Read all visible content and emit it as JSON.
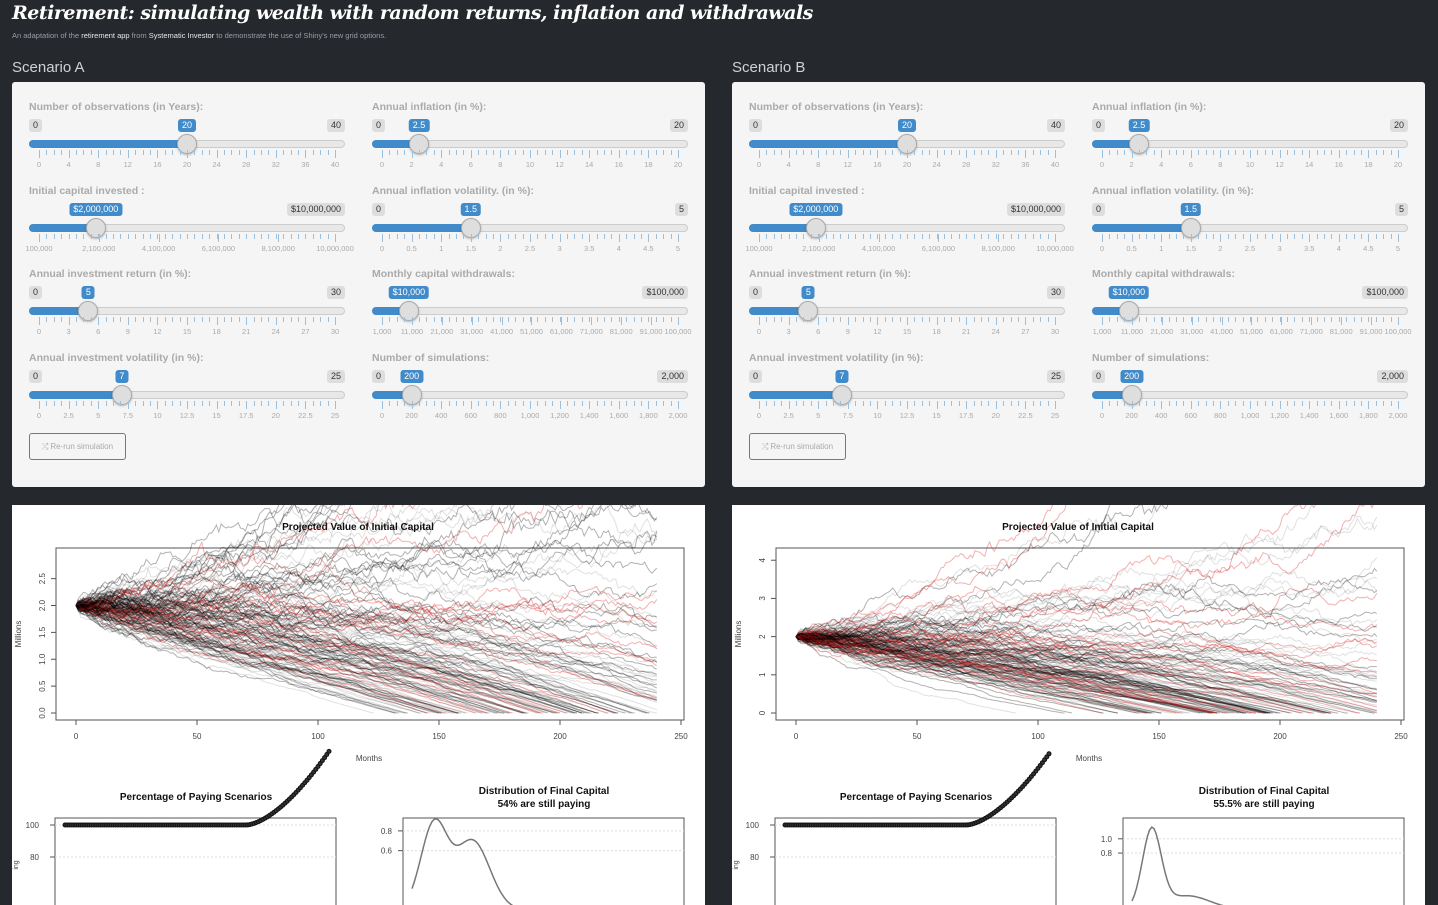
{
  "header": {
    "title": "Retirement: simulating wealth with random returns, inflation and withdrawals",
    "subtitle_parts": [
      "An adaptation of the ",
      "retirement app",
      " from ",
      "Systematic Investor",
      " to demonstrate the use of Shiny's new grid options."
    ]
  },
  "scenarios": [
    {
      "title": "Scenario A",
      "button_label": "Re-run simulation",
      "button_icon": "random-icon",
      "left": [
        {
          "label": "Number of observations (in Years):",
          "min_label": "0",
          "max_label": "40",
          "value_label": "20",
          "value": 20,
          "min": 0,
          "max": 40,
          "grid": [
            "0",
            "4",
            "8",
            "12",
            "16",
            "20",
            "24",
            "28",
            "32",
            "36",
            "40"
          ]
        },
        {
          "label": "Initial capital invested :",
          "max_label": "$10,000,000",
          "value_label": "$2,000,000",
          "value": 2000000,
          "min": 100000,
          "max": 10000000,
          "grid": [
            "100,000",
            "2,100,000",
            "4,100,000",
            "6,100,000",
            "8,100,000",
            "10,000,000"
          ]
        },
        {
          "label": "Annual investment return (in %):",
          "min_label": "0",
          "max_label": "30",
          "value_label": "5",
          "value": 5,
          "min": 0,
          "max": 30,
          "grid": [
            "0",
            "3",
            "6",
            "9",
            "12",
            "15",
            "18",
            "21",
            "24",
            "27",
            "30"
          ]
        },
        {
          "label": "Annual investment volatility (in %):",
          "min_label": "0",
          "max_label": "25",
          "value_label": "7",
          "value": 7,
          "min": 0,
          "max": 25,
          "grid": [
            "0",
            "2.5",
            "5",
            "7.5",
            "10",
            "12.5",
            "15",
            "17.5",
            "20",
            "22.5",
            "25"
          ]
        }
      ],
      "right": [
        {
          "label": "Annual inflation (in %):",
          "min_label": "0",
          "max_label": "20",
          "value_label": "2.5",
          "value": 2.5,
          "min": 0,
          "max": 20,
          "grid": [
            "0",
            "2",
            "4",
            "6",
            "8",
            "10",
            "12",
            "14",
            "16",
            "18",
            "20"
          ]
        },
        {
          "label": "Annual inflation volatility. (in %):",
          "min_label": "0",
          "max_label": "5",
          "value_label": "1.5",
          "value": 1.5,
          "min": 0,
          "max": 5,
          "grid": [
            "0",
            "0.5",
            "1",
            "1.5",
            "2",
            "2.5",
            "3",
            "3.5",
            "4",
            "4.5",
            "5"
          ]
        },
        {
          "label": "Monthly capital withdrawals:",
          "max_label": "$100,000",
          "value_label": "$10,000",
          "value": 10000,
          "min": 1000,
          "max": 100000,
          "grid": [
            "1,000",
            "11,000",
            "21,000",
            "31,000",
            "41,000",
            "51,000",
            "61,000",
            "71,000",
            "81,000",
            "91,000",
            "100,000"
          ]
        },
        {
          "label": "Number of simulations:",
          "min_label": "0",
          "max_label": "2,000",
          "value_label": "200",
          "value": 200,
          "min": 0,
          "max": 2000,
          "grid": [
            "0",
            "200",
            "400",
            "600",
            "800",
            "1,000",
            "1,200",
            "1,400",
            "1,600",
            "1,800",
            "2,000"
          ]
        }
      ],
      "plots": {
        "main_title": "Projected Value of Initial Capital",
        "xlabel": "Months",
        "ylabel": "Millions",
        "xticks": [
          "0",
          "50",
          "100",
          "150",
          "200",
          "250"
        ],
        "yticks": [
          "0.0",
          "0.5",
          "1.0",
          "1.5",
          "2.0",
          "2.5"
        ],
        "ystep": 0.5,
        "ymax": 2.95,
        "pct_title": "Percentage of Paying Scenarios",
        "pct_yticks": [
          "100",
          "80"
        ],
        "pct_ylabel": "ing",
        "dist_title": "Distribution of Final Capital",
        "dist_subtitle": "54% are still paying",
        "dist_yticks": [
          "0.8",
          "0.6"
        ],
        "dist_ytick_values": [
          0.8,
          0.6
        ],
        "dist_ymax": 0.9,
        "final_paying_pct": 54,
        "seed": 7
      }
    },
    {
      "title": "Scenario B",
      "button_label": "Re-run simulation",
      "button_icon": "random-icon",
      "left": [
        {
          "label": "Number of observations (in Years):",
          "min_label": "0",
          "max_label": "40",
          "value_label": "20",
          "value": 20,
          "min": 0,
          "max": 40,
          "grid": [
            "0",
            "4",
            "8",
            "12",
            "16",
            "20",
            "24",
            "28",
            "32",
            "36",
            "40"
          ]
        },
        {
          "label": "Initial capital invested :",
          "max_label": "$10,000,000",
          "value_label": "$2,000,000",
          "value": 2000000,
          "min": 100000,
          "max": 10000000,
          "grid": [
            "100,000",
            "2,100,000",
            "4,100,000",
            "6,100,000",
            "8,100,000",
            "10,000,000"
          ]
        },
        {
          "label": "Annual investment return (in %):",
          "min_label": "0",
          "max_label": "30",
          "value_label": "5",
          "value": 5,
          "min": 0,
          "max": 30,
          "grid": [
            "0",
            "3",
            "6",
            "9",
            "12",
            "15",
            "18",
            "21",
            "24",
            "27",
            "30"
          ]
        },
        {
          "label": "Annual investment volatility (in %):",
          "min_label": "0",
          "max_label": "25",
          "value_label": "7",
          "value": 7,
          "min": 0,
          "max": 25,
          "grid": [
            "0",
            "2.5",
            "5",
            "7.5",
            "10",
            "12.5",
            "15",
            "17.5",
            "20",
            "22.5",
            "25"
          ]
        }
      ],
      "right": [
        {
          "label": "Annual inflation (in %):",
          "min_label": "0",
          "max_label": "20",
          "value_label": "2.5",
          "value": 2.5,
          "min": 0,
          "max": 20,
          "grid": [
            "0",
            "2",
            "4",
            "6",
            "8",
            "10",
            "12",
            "14",
            "16",
            "18",
            "20"
          ]
        },
        {
          "label": "Annual inflation volatility. (in %):",
          "min_label": "0",
          "max_label": "5",
          "value_label": "1.5",
          "value": 1.5,
          "min": 0,
          "max": 5,
          "grid": [
            "0",
            "0.5",
            "1",
            "1.5",
            "2",
            "2.5",
            "3",
            "3.5",
            "4",
            "4.5",
            "5"
          ]
        },
        {
          "label": "Monthly capital withdrawals:",
          "max_label": "$100,000",
          "value_label": "$10,000",
          "value": 10000,
          "min": 1000,
          "max": 100000,
          "grid": [
            "1,000",
            "11,000",
            "21,000",
            "31,000",
            "41,000",
            "51,000",
            "61,000",
            "71,000",
            "81,000",
            "91,000",
            "100,000"
          ]
        },
        {
          "label": "Number of simulations:",
          "min_label": "0",
          "max_label": "2,000",
          "value_label": "200",
          "value": 200,
          "min": 0,
          "max": 2000,
          "grid": [
            "0",
            "200",
            "400",
            "600",
            "800",
            "1,000",
            "1,200",
            "1,400",
            "1,600",
            "1,800",
            "2,000"
          ]
        }
      ],
      "plots": {
        "main_title": "Projected Value of Initial Capital",
        "xlabel": "Months",
        "ylabel": "Millions",
        "xticks": [
          "0",
          "50",
          "100",
          "150",
          "200",
          "250"
        ],
        "yticks": [
          "0",
          "1",
          "2",
          "3",
          "4"
        ],
        "ystep": 1,
        "ymax": 4.2,
        "pct_title": "Percentage of Paying Scenarios",
        "pct_yticks": [
          "100",
          "80"
        ],
        "pct_ylabel": "ing",
        "dist_title": "Distribution of Final Capital",
        "dist_subtitle": "55.5% are still paying",
        "dist_yticks": [
          "1.0",
          "0.8"
        ],
        "dist_ytick_values": [
          1.0,
          0.8
        ],
        "dist_ymax": 1.25,
        "final_paying_pct": 55.5,
        "seed": 23
      }
    }
  ]
}
